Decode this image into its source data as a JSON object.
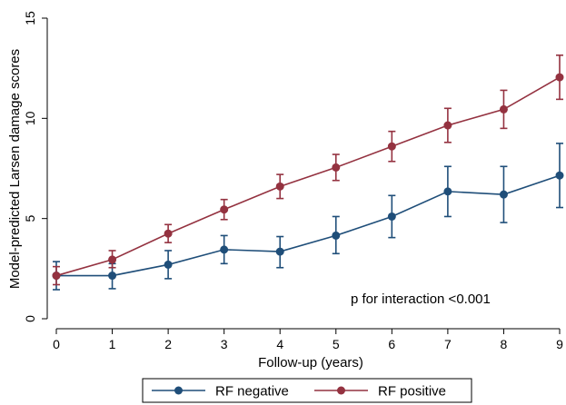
{
  "chart_data": {
    "type": "line",
    "x": [
      0,
      1,
      2,
      3,
      4,
      5,
      6,
      7,
      8,
      9
    ],
    "xlabel": "Follow-up (years)",
    "ylabel": "Model-predicted Larsen damage scores",
    "xlim": [
      0,
      9
    ],
    "ylim": [
      0,
      15
    ],
    "yticks": [
      0,
      5,
      10,
      15
    ],
    "xticks": [
      0,
      1,
      2,
      3,
      4,
      5,
      6,
      7,
      8,
      9
    ],
    "grid": false,
    "legend_position": "bottom",
    "annotation": "p for interaction <0.001",
    "series": [
      {
        "name": "RF negative",
        "color": "#1f4e79",
        "values": [
          2.15,
          2.15,
          2.7,
          3.45,
          3.35,
          4.15,
          5.1,
          6.35,
          6.2,
          7.15
        ],
        "lower": [
          1.45,
          1.5,
          2.0,
          2.75,
          2.55,
          3.25,
          4.05,
          5.1,
          4.8,
          5.55
        ],
        "upper": [
          2.85,
          2.75,
          3.4,
          4.15,
          4.1,
          5.1,
          6.15,
          7.6,
          7.6,
          8.75
        ]
      },
      {
        "name": "RF positive",
        "color": "#943240",
        "values": [
          2.15,
          2.95,
          4.25,
          5.45,
          6.6,
          7.55,
          8.6,
          9.65,
          10.45,
          12.05
        ],
        "lower": [
          1.7,
          2.55,
          3.8,
          4.95,
          6.0,
          6.9,
          7.85,
          8.8,
          9.5,
          10.95
        ],
        "upper": [
          2.6,
          3.4,
          4.7,
          5.95,
          7.2,
          8.2,
          9.35,
          10.5,
          11.4,
          13.15
        ]
      }
    ]
  }
}
